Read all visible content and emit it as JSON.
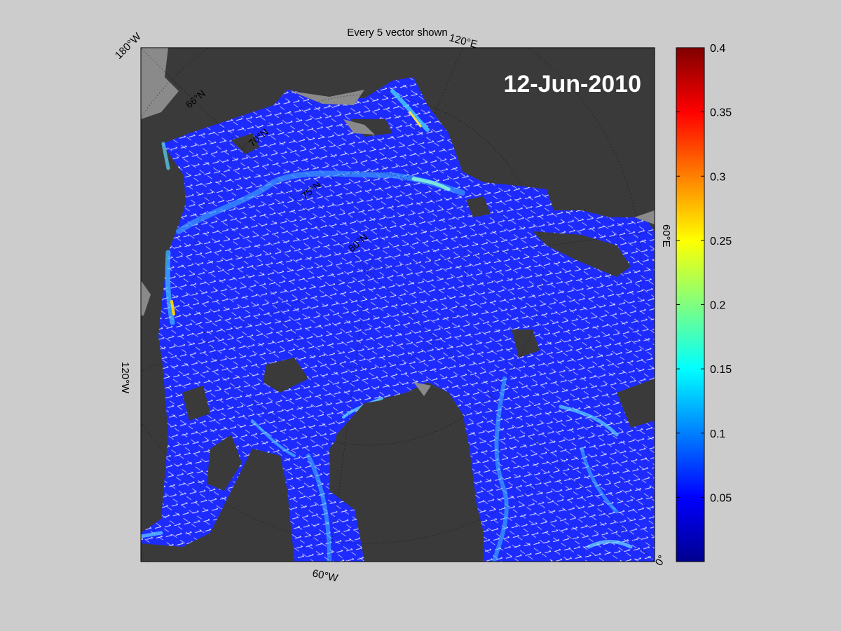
{
  "figure": {
    "title": "Every 5 vector shown",
    "date": "12-Jun-2010",
    "colors": {
      "background": "#cccccc",
      "land": "#3a3a3a",
      "ocean_base": "#1e2bff",
      "vectors": "#ffffff"
    }
  },
  "map": {
    "projection": "polar-stereographic",
    "coordinate_labels": {
      "lon_180w": "180°W",
      "lon_120e": "120°E",
      "lon_120w": "120°W",
      "lon_60e": "60°E",
      "lon_60w": "60°W",
      "lon_0": "0°",
      "lat_66n": "66°N",
      "lat_70n": "70°N",
      "lat_75n": "75°N",
      "lat_80n": "80°N"
    }
  },
  "colorbar": {
    "colormap": "jet",
    "min": 0,
    "max": 0.4,
    "ticks": [
      {
        "value": 0.4,
        "label": "0.4"
      },
      {
        "value": 0.35,
        "label": "0.35"
      },
      {
        "value": 0.3,
        "label": "0.3"
      },
      {
        "value": 0.25,
        "label": "0.25"
      },
      {
        "value": 0.2,
        "label": "0.2"
      },
      {
        "value": 0.15,
        "label": "0.15"
      },
      {
        "value": 0.1,
        "label": "0.1"
      },
      {
        "value": 0.05,
        "label": "0.05"
      }
    ]
  }
}
